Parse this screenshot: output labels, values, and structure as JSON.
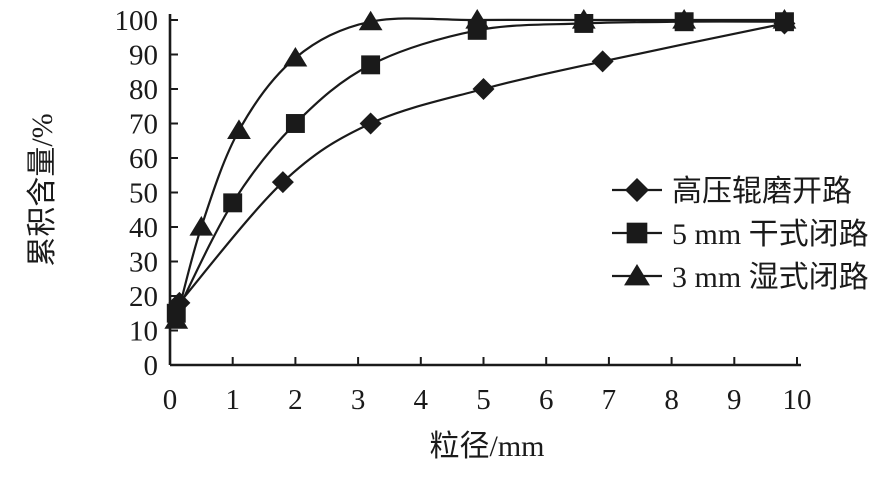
{
  "figure": {
    "background": "#ffffff",
    "ink_color": "#1a1a1a"
  },
  "chart_data": {
    "type": "line",
    "title": "",
    "xlabel": "粒径/mm",
    "ylabel": "累积含量/%",
    "xlim": [
      0,
      10
    ],
    "ylim": [
      0,
      100
    ],
    "xticks": [
      0,
      1,
      2,
      3,
      4,
      5,
      6,
      7,
      8,
      9,
      10
    ],
    "yticks": [
      0,
      10,
      20,
      30,
      40,
      50,
      60,
      70,
      80,
      90,
      100
    ],
    "grid": false,
    "legend_position": "right-middle",
    "series": [
      {
        "name": "高压辊磨开路",
        "marker": "diamond",
        "color": "#1a1a1a",
        "points": [
          [
            0.15,
            18
          ],
          [
            1.8,
            53
          ],
          [
            3.2,
            70
          ],
          [
            5,
            80
          ],
          [
            6.9,
            88
          ],
          [
            9.8,
            99
          ]
        ]
      },
      {
        "name": "5 mm 干式闭路",
        "marker": "square",
        "color": "#1a1a1a",
        "points": [
          [
            0.1,
            15
          ],
          [
            1,
            47
          ],
          [
            2,
            70
          ],
          [
            3.2,
            87
          ],
          [
            4.9,
            97
          ],
          [
            6.6,
            99
          ],
          [
            8.2,
            99.5
          ],
          [
            9.8,
            99.5
          ]
        ]
      },
      {
        "name": "3 mm 湿式闭路",
        "marker": "triangle",
        "color": "#1a1a1a",
        "points": [
          [
            0.1,
            13
          ],
          [
            0.5,
            40
          ],
          [
            1.1,
            68
          ],
          [
            2,
            89
          ],
          [
            3.2,
            99.5
          ],
          [
            4.9,
            100
          ],
          [
            6.6,
            100
          ],
          [
            8.2,
            100
          ],
          [
            9.8,
            100
          ]
        ]
      }
    ]
  }
}
